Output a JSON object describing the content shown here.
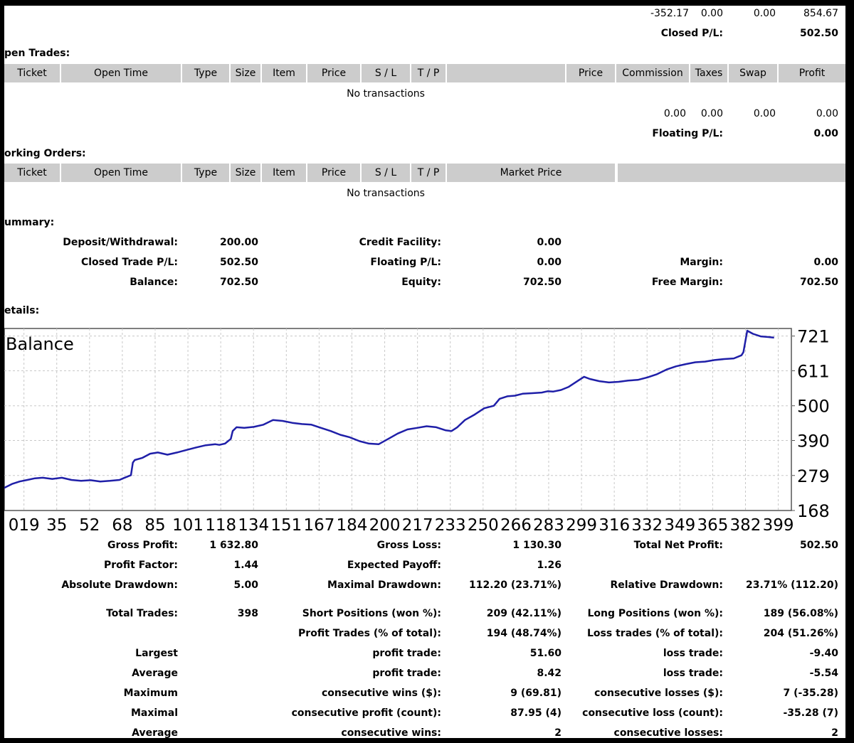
{
  "closed_totals": {
    "v1": "-352.17",
    "v2": "0.00",
    "v3": "0.00",
    "v4": "854.67",
    "label": "Closed P/L:",
    "value": "502.50"
  },
  "open_trades": {
    "title": "pen Trades:",
    "headers": [
      "Ticket",
      "Open Time",
      "Type",
      "Size",
      "Item",
      "Price",
      "S / L",
      "T / P",
      "",
      "Price",
      "Commission",
      "Taxes",
      "Swap",
      "Profit"
    ],
    "empty": "No transactions",
    "totals": {
      "v1": "0.00",
      "v2": "0.00",
      "v3": "0.00",
      "v4": "0.00"
    },
    "floating_label": "Floating P/L:",
    "floating_value": "0.00"
  },
  "working_orders": {
    "title": "orking Orders:",
    "headers": [
      "Ticket",
      "Open Time",
      "Type",
      "Size",
      "Item",
      "Price",
      "S / L",
      "T / P",
      "Market Price",
      ""
    ],
    "empty": "No transactions"
  },
  "summary": {
    "title": "ummary:",
    "deposit_label": "Deposit/Withdrawal:",
    "deposit_value": "200.00",
    "closed_label": "Closed Trade P/L:",
    "closed_value": "502.50",
    "balance_label": "Balance:",
    "balance_value": "702.50",
    "credit_label": "Credit Facility:",
    "credit_value": "0.00",
    "floating_label": "Floating P/L:",
    "floating_value": "0.00",
    "equity_label": "Equity:",
    "equity_value": "702.50",
    "margin_label": "Margin:",
    "margin_value": "0.00",
    "free_margin_label": "Free Margin:",
    "free_margin_value": "702.50"
  },
  "details": {
    "title": "etails:"
  },
  "chart_data": {
    "type": "line",
    "title": "Balance",
    "xlabel": "",
    "ylabel": "",
    "y_ticks": [
      721,
      611,
      500,
      390,
      279,
      168
    ],
    "x_ticks": [
      "019",
      "35",
      "52",
      "68",
      "85",
      "101",
      "118",
      "134",
      "151",
      "167",
      "184",
      "200",
      "217",
      "233",
      "250",
      "266",
      "283",
      "299",
      "316",
      "332",
      "349",
      "365",
      "382",
      "399"
    ],
    "xlim": [
      0,
      410
    ],
    "ylim": [
      168,
      745
    ],
    "grid": true,
    "line_color": "#1f1fa8",
    "series": [
      {
        "x": [
          0,
          4,
          8,
          12,
          16,
          20,
          25,
          30,
          35,
          40,
          45,
          50,
          55,
          60,
          62,
          66,
          67,
          68,
          72,
          76,
          80,
          85,
          90,
          95,
          100,
          105,
          110,
          112,
          115,
          118,
          119,
          121,
          125,
          130,
          135,
          140,
          145,
          150,
          155,
          160,
          165,
          170,
          175,
          180,
          185,
          190,
          195,
          200,
          205,
          210,
          215,
          220,
          225,
          230,
          233,
          236,
          240,
          245,
          250,
          255,
          258,
          262,
          266,
          270,
          275,
          280,
          283,
          286,
          290,
          294,
          299,
          302,
          305,
          310,
          315,
          320,
          325,
          330,
          335,
          340,
          345,
          350,
          355,
          360,
          365,
          370,
          375,
          380,
          384,
          385,
          387,
          390,
          394,
          398,
          401
        ],
        "y": [
          240,
          252,
          260,
          265,
          270,
          272,
          268,
          272,
          265,
          262,
          264,
          260,
          262,
          265,
          270,
          280,
          320,
          328,
          335,
          348,
          352,
          345,
          352,
          360,
          368,
          375,
          378,
          376,
          380,
          395,
          420,
          432,
          430,
          433,
          440,
          455,
          452,
          446,
          442,
          440,
          430,
          420,
          408,
          400,
          388,
          380,
          378,
          395,
          412,
          425,
          430,
          435,
          432,
          422,
          420,
          432,
          455,
          472,
          492,
          500,
          522,
          530,
          532,
          538,
          540,
          542,
          546,
          545,
          550,
          560,
          580,
          592,
          585,
          578,
          574,
          576,
          580,
          582,
          590,
          600,
          615,
          625,
          632,
          638,
          640,
          645,
          648,
          650,
          660,
          670,
          738,
          728,
          720,
          718,
          716
        ]
      }
    ]
  },
  "stats": {
    "gross_profit_label": "Gross Profit:",
    "gross_profit_value": "1 632.80",
    "gross_loss_label": "Gross Loss:",
    "gross_loss_value": "1 130.30",
    "total_net_label": "Total Net Profit:",
    "total_net_value": "502.50",
    "profit_factor_label": "Profit Factor:",
    "profit_factor_value": "1.44",
    "expected_payoff_label": "Expected Payoff:",
    "expected_payoff_value": "1.26",
    "abs_dd_label": "Absolute Drawdown:",
    "abs_dd_value": "5.00",
    "max_dd_label": "Maximal Drawdown:",
    "max_dd_value": "112.20 (23.71%)",
    "rel_dd_label": "Relative Drawdown:",
    "rel_dd_value": "23.71% (112.20)",
    "total_trades_label": "Total Trades:",
    "total_trades_value": "398",
    "short_label": "Short Positions (won %):",
    "short_value": "209 (42.11%)",
    "long_label": "Long Positions (won %):",
    "long_value": "189 (56.08%)",
    "profit_trades_label": "Profit Trades (% of total):",
    "profit_trades_value": "194 (48.74%)",
    "loss_trades_label": "Loss trades (% of total):",
    "loss_trades_value": "204 (51.26%)",
    "largest_label": "Largest",
    "largest_profit_label": "profit trade:",
    "largest_profit_value": "51.60",
    "largest_loss_label": "loss trade:",
    "largest_loss_value": "-9.40",
    "average_label": "Average",
    "average_profit_label": "profit trade:",
    "average_profit_value": "8.42",
    "average_loss_label": "loss trade:",
    "average_loss_value": "-5.54",
    "maximum_label": "Maximum",
    "max_cons_wins_label": "consecutive wins ($):",
    "max_cons_wins_value": "9 (69.81)",
    "max_cons_losses_label": "consecutive losses ($):",
    "max_cons_losses_value": "7 (-35.28)",
    "maximal_label": "Maximal",
    "maximal_profit_label": "consecutive profit (count):",
    "maximal_profit_value": "87.95 (4)",
    "maximal_loss_label": "consecutive loss (count):",
    "maximal_loss_value": "-35.28 (7)",
    "average2_label": "Average",
    "avg_cons_wins_label": "consecutive wins:",
    "avg_cons_wins_value": "2",
    "avg_cons_losses_label": "consecutive losses:",
    "avg_cons_losses_value": "2"
  }
}
